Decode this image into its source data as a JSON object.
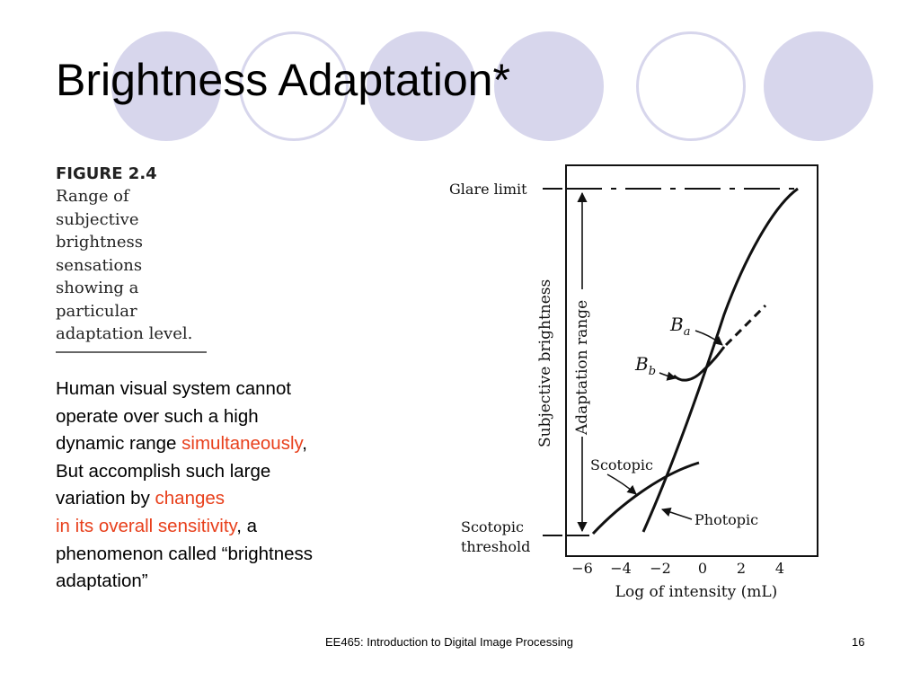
{
  "title": "Brightness Adaptation*",
  "figure": {
    "label": "FIGURE 2.4",
    "caption_lines": [
      "Range of",
      "subjective",
      "brightness",
      "sensations",
      "showing a",
      "particular",
      "adaptation level."
    ]
  },
  "body": {
    "lines": [
      [
        {
          "text": "Human visual system cannot",
          "hl": false
        }
      ],
      [
        {
          "text": "operate over such a high",
          "hl": false
        }
      ],
      [
        {
          "text": "dynamic range ",
          "hl": false
        },
        {
          "text": "simultaneously",
          "hl": true
        },
        {
          "text": ",",
          "hl": false
        }
      ],
      [
        {
          "text": "But accomplish such large",
          "hl": false
        }
      ],
      [
        {
          "text": "variation by ",
          "hl": false
        },
        {
          "text": "changes",
          "hl": true
        }
      ],
      [
        {
          "text": "in its overall sensitivity",
          "hl": true
        },
        {
          "text": ", a",
          "hl": false
        }
      ],
      [
        {
          "text": "phenomenon called “brightness",
          "hl": false
        }
      ],
      [
        {
          "text": "adaptation”",
          "hl": false
        }
      ]
    ]
  },
  "diagram": {
    "glare_limit": "Glare limit",
    "y_axis_label": "Subjective brightness",
    "adaptation_range": "Adaptation range",
    "ba_letter": "B",
    "ba_sub": "a",
    "bb_letter": "B",
    "bb_sub": "b",
    "scotopic": "Scotopic",
    "photopic": "Photopic",
    "scotopic_threshold_line1": "Scotopic",
    "scotopic_threshold_line2": "threshold",
    "x_ticks": [
      "−6",
      "−4",
      "−2",
      "0",
      "2",
      "4"
    ],
    "x_axis_label": "Log of intensity (mL)"
  },
  "footer": {
    "course": "EE465: Introduction to Digital Image Processing",
    "page": "16"
  },
  "colors": {
    "accent": "#e8401c",
    "decoration": "#d7d6ec"
  }
}
